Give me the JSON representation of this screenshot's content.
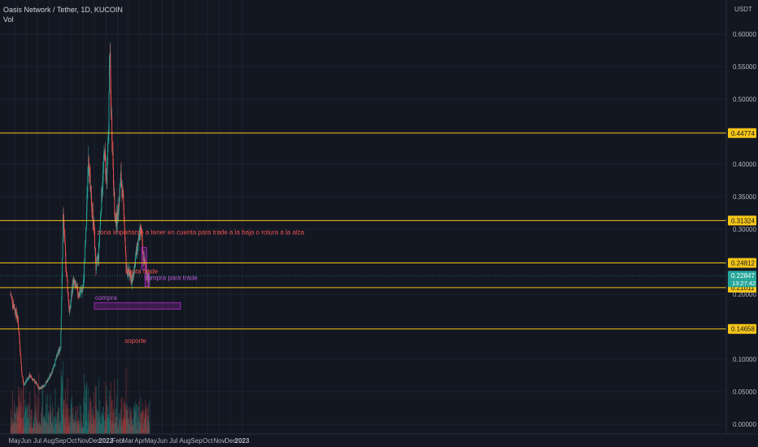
{
  "header": {
    "symbol": "Oasis Network / Tether, 1D, KUCOIN",
    "volume_label": "Vol"
  },
  "colors": {
    "background": "#131722",
    "up": "#26a69a",
    "down": "#ef5350",
    "level_line": "#f5c518",
    "zone": "#9c27b0",
    "annotation_red": "#ef5350",
    "annotation_purple": "#b45cd6",
    "axis_text": "#b2b5be",
    "current_price_tag": "#26a69a"
  },
  "chart_data": {
    "type": "candlestick",
    "quote_currency": "USDT",
    "x_ticks": [
      "May",
      "Jun",
      "Jul",
      "Aug",
      "Sep",
      "Oct",
      "Nov",
      "Dec",
      "2022",
      "Feb",
      "Mar",
      "Apr",
      "May",
      "Jun",
      "Jul",
      "Aug",
      "Sep",
      "Oct",
      "Nov",
      "Dec",
      "2023"
    ],
    "y_ticks": [
      0.0,
      0.05,
      0.1,
      0.15,
      0.2,
      0.25,
      0.3,
      0.35,
      0.4,
      0.45,
      0.5,
      0.55,
      0.6
    ],
    "y_tick_labels": [
      "0.00000",
      "0.05000",
      "0.10000",
      "0.15000",
      "0.20000",
      "0.25000",
      "0.30000",
      "0.35000",
      "0.40000",
      "0.45000",
      "0.50000",
      "0.55000",
      "0.60000"
    ],
    "ylim": [
      -0.01,
      0.65
    ],
    "price_path": [
      {
        "date": "2021-04-20",
        "price": 0.2
      },
      {
        "date": "2021-05-10",
        "price": 0.16
      },
      {
        "date": "2021-05-20",
        "price": 0.08
      },
      {
        "date": "2021-05-25",
        "price": 0.06
      },
      {
        "date": "2021-06-10",
        "price": 0.075
      },
      {
        "date": "2021-06-25",
        "price": 0.065
      },
      {
        "date": "2021-07-05",
        "price": 0.055
      },
      {
        "date": "2021-07-20",
        "price": 0.06
      },
      {
        "date": "2021-08-05",
        "price": 0.075
      },
      {
        "date": "2021-08-20",
        "price": 0.1
      },
      {
        "date": "2021-09-01",
        "price": 0.12
      },
      {
        "date": "2021-09-05",
        "price": 0.22
      },
      {
        "date": "2021-09-08",
        "price": 0.32
      },
      {
        "date": "2021-09-15",
        "price": 0.25
      },
      {
        "date": "2021-09-25",
        "price": 0.17
      },
      {
        "date": "2021-10-05",
        "price": 0.22
      },
      {
        "date": "2021-10-20",
        "price": 0.2
      },
      {
        "date": "2021-11-01",
        "price": 0.21
      },
      {
        "date": "2021-11-08",
        "price": 0.29
      },
      {
        "date": "2021-11-15",
        "price": 0.42
      },
      {
        "date": "2021-11-20",
        "price": 0.36
      },
      {
        "date": "2021-11-30",
        "price": 0.3
      },
      {
        "date": "2021-12-05",
        "price": 0.24
      },
      {
        "date": "2021-12-12",
        "price": 0.26
      },
      {
        "date": "2021-12-20",
        "price": 0.35
      },
      {
        "date": "2021-12-28",
        "price": 0.42
      },
      {
        "date": "2022-01-03",
        "price": 0.37
      },
      {
        "date": "2022-01-08",
        "price": 0.46
      },
      {
        "date": "2022-01-11",
        "price": 0.58
      },
      {
        "date": "2022-01-14",
        "price": 0.5
      },
      {
        "date": "2022-01-20",
        "price": 0.4
      },
      {
        "date": "2022-01-25",
        "price": 0.31
      },
      {
        "date": "2022-02-01",
        "price": 0.32
      },
      {
        "date": "2022-02-10",
        "price": 0.38
      },
      {
        "date": "2022-02-18",
        "price": 0.33
      },
      {
        "date": "2022-02-24",
        "price": 0.24
      },
      {
        "date": "2022-03-05",
        "price": 0.23
      },
      {
        "date": "2022-03-12",
        "price": 0.22
      },
      {
        "date": "2022-03-20",
        "price": 0.25
      },
      {
        "date": "2022-03-28",
        "price": 0.28
      },
      {
        "date": "2022-04-05",
        "price": 0.3
      },
      {
        "date": "2022-04-10",
        "price": 0.26
      },
      {
        "date": "2022-04-18",
        "price": 0.24
      },
      {
        "date": "2022-04-25",
        "price": 0.22
      },
      {
        "date": "2022-04-28",
        "price": 0.2285
      }
    ],
    "horizontal_levels": [
      {
        "price": 0.44774,
        "label": "0.44774"
      },
      {
        "price": 0.31324,
        "label": "0.31324"
      },
      {
        "price": 0.24812,
        "label": "0.24812"
      },
      {
        "price": 0.21011,
        "label": "0.21011"
      },
      {
        "price": 0.14658,
        "label": "0.14658"
      }
    ],
    "current_price": {
      "price": 0.22847,
      "label": "0.22847",
      "countdown": "13:27:42"
    },
    "zones": [
      {
        "name": "compra",
        "date_start": "2021-12-01",
        "date_end": "2022-07-20",
        "price_top": 0.187,
        "price_bottom": 0.177
      },
      {
        "name": "venta-zone",
        "date_start": "2022-04-07",
        "date_end": "2022-04-20",
        "price_top": 0.272,
        "price_bottom": 0.238
      },
      {
        "name": "compra-trade-zone",
        "date_start": "2022-04-16",
        "date_end": "2022-04-27",
        "price_top": 0.232,
        "price_bottom": 0.212
      }
    ],
    "annotations": [
      {
        "text": "zona importante a tener en cuenta para trade a la baja o rotura a la alza",
        "date": "2021-12-08",
        "price": 0.292,
        "color": "red"
      },
      {
        "text": "venta trade",
        "date": "2022-02-22",
        "price": 0.232,
        "color": "red"
      },
      {
        "text": "compra para trade",
        "date": "2022-04-14",
        "price": 0.222,
        "color": "purple"
      },
      {
        "text": "compra",
        "date": "2021-12-03",
        "price": 0.191,
        "color": "purple"
      },
      {
        "text": "soporte",
        "date": "2022-02-20",
        "price": 0.125,
        "color": "red"
      }
    ],
    "grid": true,
    "legend": "top-left"
  }
}
